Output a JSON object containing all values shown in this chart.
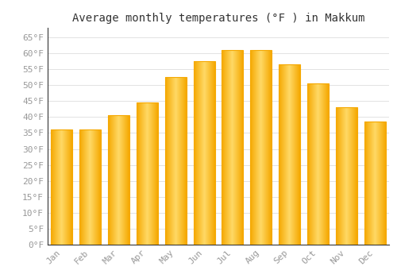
{
  "title": "Average monthly temperatures (°F ) in Makkum",
  "months": [
    "Jan",
    "Feb",
    "Mar",
    "Apr",
    "May",
    "Jun",
    "Jul",
    "Aug",
    "Sep",
    "Oct",
    "Nov",
    "Dec"
  ],
  "values": [
    36,
    36,
    40.5,
    44.5,
    52.5,
    57.5,
    61,
    61,
    56.5,
    50.5,
    43,
    38.5
  ],
  "bar_color_center": "#FFD966",
  "bar_color_edge": "#F5A800",
  "background_color": "#FFFFFF",
  "grid_color": "#DDDDDD",
  "text_color": "#999999",
  "title_color": "#333333",
  "ylim": [
    0,
    68
  ],
  "yticks": [
    0,
    5,
    10,
    15,
    20,
    25,
    30,
    35,
    40,
    45,
    50,
    55,
    60,
    65
  ],
  "title_fontsize": 10,
  "tick_fontsize": 8,
  "bar_width": 0.75
}
